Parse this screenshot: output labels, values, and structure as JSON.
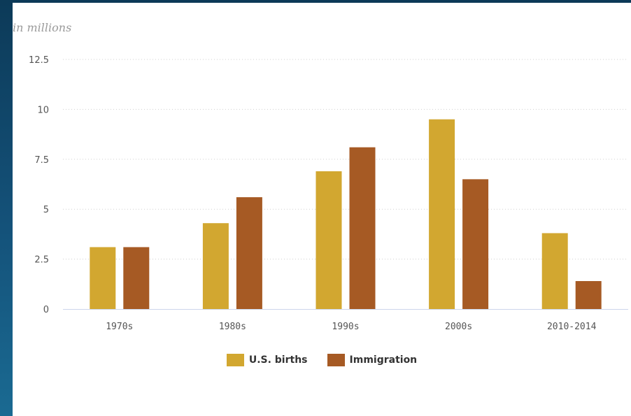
{
  "chart_data": {
    "type": "bar",
    "title": "",
    "unit_label": "in millions",
    "xlabel": "",
    "ylabel": "",
    "categories": [
      "1970s",
      "1980s",
      "1990s",
      "2000s",
      "2010-2014"
    ],
    "series": [
      {
        "name": "U.S. births",
        "color": "#d2a730",
        "values": [
          3.1,
          4.3,
          6.9,
          9.5,
          3.8
        ]
      },
      {
        "name": "Immigration",
        "color": "#a65a24",
        "values": [
          3.1,
          5.6,
          8.1,
          6.5,
          1.4
        ]
      }
    ],
    "yticks": [
      0,
      2.5,
      5,
      7.5,
      10,
      12.5
    ],
    "ytick_labels": [
      "0",
      "2.5",
      "5",
      "7.5",
      "10",
      "12.5"
    ],
    "ylim": [
      0,
      12.5
    ],
    "grid": true,
    "legend_position": "bottom-center"
  }
}
